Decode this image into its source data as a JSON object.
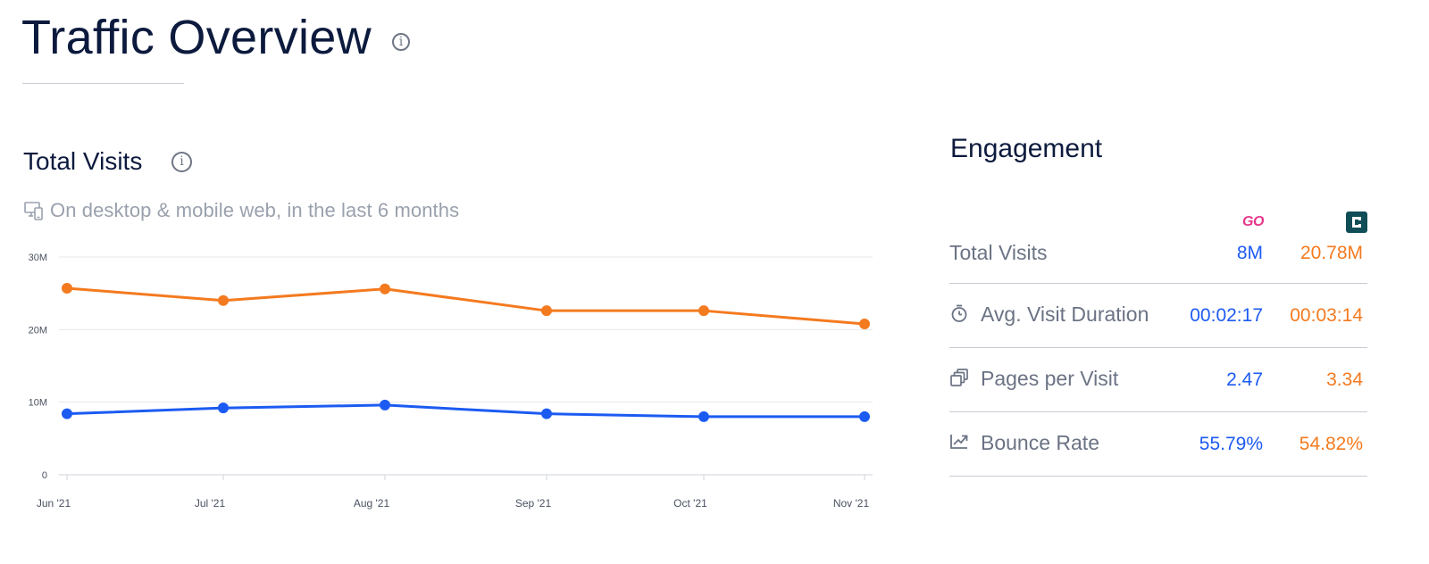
{
  "header": {
    "title": "Traffic Overview",
    "info_icon": "info-circle-icon"
  },
  "total_visits": {
    "title": "Total Visits",
    "info_icon": "info-circle-icon",
    "device_icon": "desktop-mobile-icon",
    "subtitle": "On desktop & mobile web, in the last 6 months"
  },
  "colors": {
    "site_a": "#1c5bf2",
    "site_b": "#f47a1f",
    "grid": "#e6e8ec",
    "axis_text": "#4a5160",
    "label_text": "#6b7384",
    "title_text": "#0c1a3d",
    "logo_go": "#e8358a",
    "logo_c": "#0f4d57"
  },
  "chart_data": {
    "type": "line",
    "categories": [
      "Jun '21",
      "Jul '21",
      "Aug '21",
      "Sep '21",
      "Oct '21",
      "Nov '21"
    ],
    "series": [
      {
        "values": [
          25.7,
          24.0,
          25.6,
          22.6,
          22.6,
          20.78
        ],
        "color": "#f47a1f"
      },
      {
        "values": [
          8.4,
          9.2,
          9.6,
          8.4,
          8.0,
          8.0
        ],
        "color": "#1c5bf2"
      }
    ],
    "y_ticks": [
      {
        "value": 30,
        "label": "30M"
      },
      {
        "value": 20,
        "label": "20M"
      },
      {
        "value": 10,
        "label": "10M"
      },
      {
        "value": 0,
        "label": "0"
      }
    ],
    "ylim": [
      0,
      30
    ],
    "ylabel": "",
    "xlabel": "",
    "grid": true
  },
  "engagement": {
    "title": "Engagement",
    "site_logos": [
      {
        "name": "go-logo-icon",
        "text": "GO"
      },
      {
        "name": "c-logo-icon",
        "text": ""
      }
    ],
    "rows": [
      {
        "label": "Total Visits",
        "icon": "",
        "value_a": "8M",
        "value_b": "20.78M"
      },
      {
        "label": "Avg. Visit Duration",
        "icon": "stopwatch-icon",
        "value_a": "00:02:17",
        "value_b": "00:03:14"
      },
      {
        "label": "Pages per Visit",
        "icon": "pages-stack-icon",
        "value_a": "2.47",
        "value_b": "3.34"
      },
      {
        "label": "Bounce Rate",
        "icon": "bounce-arrow-icon",
        "value_a": "55.79%",
        "value_b": "54.82%"
      }
    ]
  }
}
